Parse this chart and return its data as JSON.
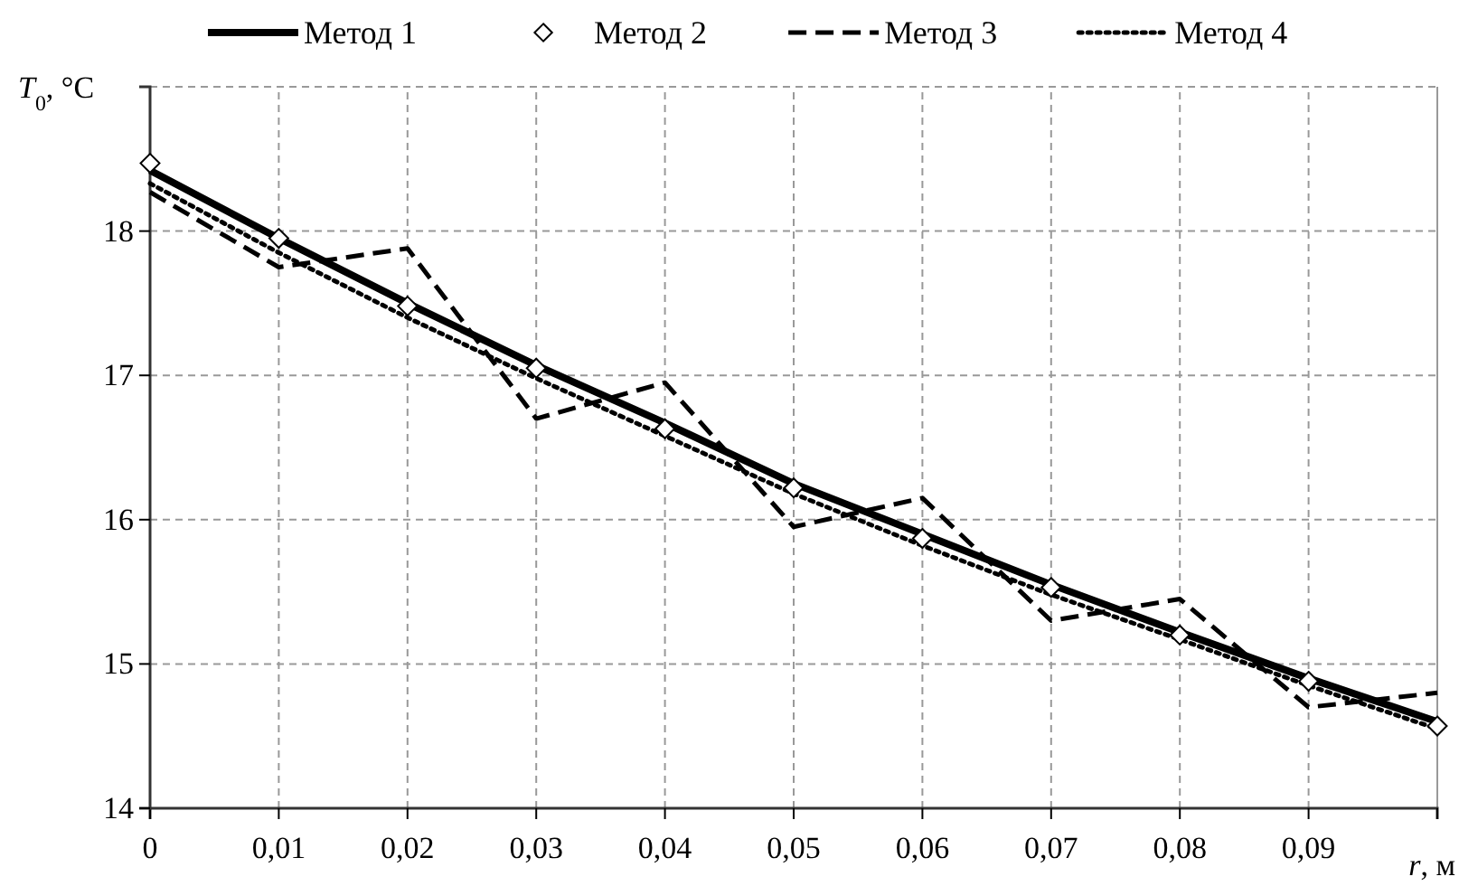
{
  "chart_data": {
    "type": "line",
    "xlabel": "r, м",
    "ylabel": "T$_{0}$, °C",
    "x": [
      0,
      0.01,
      0.02,
      0.03,
      0.04,
      0.05,
      0.06,
      0.07,
      0.08,
      0.09,
      0.1
    ],
    "xlim": [
      0,
      0.1
    ],
    "ylim": [
      14,
      19
    ],
    "xticks": [
      0,
      {
        "value": 0.01,
        "label": "0,01"
      },
      {
        "value": 0.02,
        "label": "0,02"
      },
      {
        "value": 0.03,
        "label": "0,03"
      },
      {
        "value": 0.04,
        "label": "0,04"
      },
      {
        "value": 0.05,
        "label": "0,05"
      },
      {
        "value": 0.06,
        "label": "0,06"
      },
      {
        "value": 0.07,
        "label": "0,07"
      },
      {
        "value": 0.08,
        "label": "0,08"
      },
      {
        "value": 0.09,
        "label": "0,09"
      },
      {
        "value": 0.1,
        "label": null
      }
    ],
    "yticks": [
      14,
      15,
      16,
      17,
      18
    ],
    "grid": true,
    "legend": "top",
    "series": [
      {
        "name": "Метод 1",
        "color": "#000000",
        "line_style": "solid",
        "marker": "none",
        "values": [
          18.42,
          17.95,
          17.5,
          17.07,
          16.67,
          16.25,
          15.9,
          15.55,
          15.22,
          14.9,
          14.6
        ]
      },
      {
        "name": "Метод 2",
        "type": "scatter",
        "color": "#000000",
        "marker": "diamond",
        "values": [
          18.47,
          17.95,
          17.48,
          17.05,
          16.63,
          16.22,
          15.87,
          15.53,
          15.2,
          14.88,
          14.57
        ]
      },
      {
        "name": "Метод 3",
        "color": "#000000",
        "line_style": "dashed",
        "marker": "none",
        "values": [
          18.27,
          17.75,
          17.88,
          16.7,
          16.95,
          15.95,
          16.15,
          15.3,
          15.45,
          14.7,
          14.8
        ]
      },
      {
        "name": "Метод 4",
        "color": "#000000",
        "line_style": "dotted",
        "marker": "none",
        "values": [
          18.33,
          17.85,
          17.4,
          16.98,
          16.58,
          16.18,
          15.82,
          15.48,
          15.17,
          14.85,
          14.55
        ]
      }
    ]
  }
}
